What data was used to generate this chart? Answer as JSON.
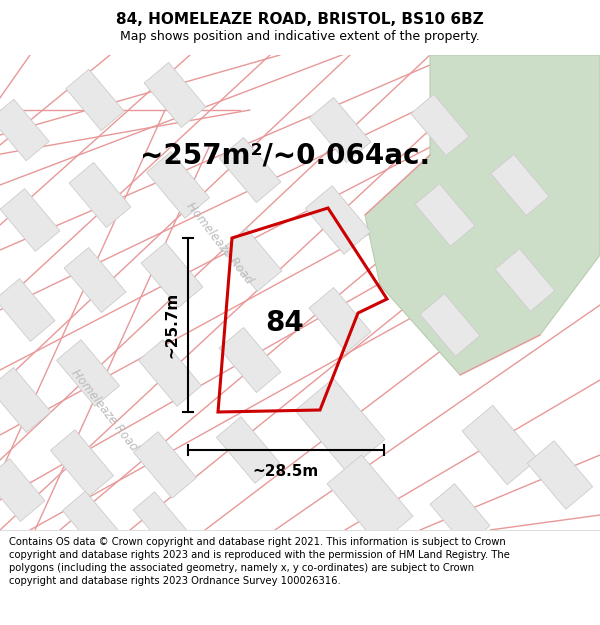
{
  "title": "84, HOMELEAZE ROAD, BRISTOL, BS10 6BZ",
  "subtitle": "Map shows position and indicative extent of the property.",
  "area_text": "~257m²/~0.064ac.",
  "dim_height": "~25.7m",
  "dim_width": "~28.5m",
  "label_84": "84",
  "copyright": "Contains OS data © Crown copyright and database right 2021. This information is subject to Crown copyright and database rights 2023 and is reproduced with the permission of HM Land Registry. The polygons (including the associated geometry, namely x, y co-ordinates) are subject to Crown copyright and database rights 2023 Ordnance Survey 100026316.",
  "bg_color": "#ffffff",
  "building_color": "#e8e8e8",
  "building_edge": "#cccccc",
  "road_color": "#f4b8b8",
  "road_line_color": "#e89898",
  "property_color": "#cc0000",
  "green_color": "#cddec8",
  "green_edge": "#b8ccb0",
  "title_fontsize": 11,
  "subtitle_fontsize": 9,
  "area_fontsize": 20,
  "label_fontsize": 20,
  "dim_fontsize": 11,
  "copyright_fontsize": 7.2,
  "road_label_color": "#bbbbbb",
  "road_label_size": 8.5
}
